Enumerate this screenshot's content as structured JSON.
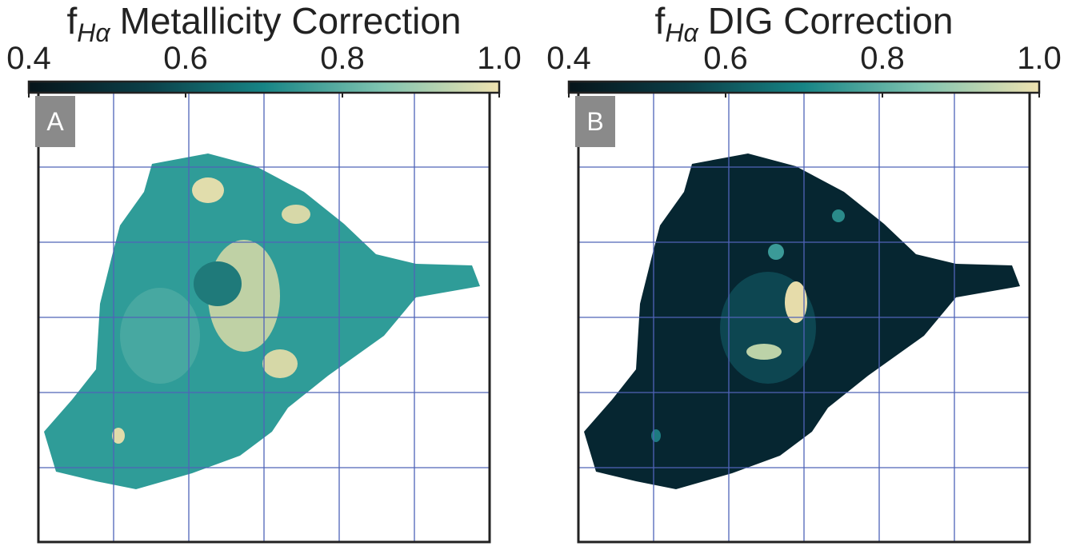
{
  "chart_data": [
    {
      "type": "map",
      "panel_label": "A",
      "title_prefix": "f",
      "title_subscript": "Hα",
      "title": "Metallicity Correction",
      "colorbar_lim": [
        0.4,
        1
      ],
      "colorbar_ticks": [
        0.4,
        0.6,
        0.8,
        {
          "value": 1,
          "label": "1.0"
        }
      ],
      "colormap": [
        "#06141a",
        "#0b3f48",
        "#178586",
        "#7fc3b0",
        "#efe2b0"
      ],
      "grid": true
    },
    {
      "type": "map",
      "panel_label": "B",
      "title_prefix": "f",
      "title_subscript": "Hα",
      "title": "DIG Correction",
      "colorbar_lim": [
        0.4,
        1
      ],
      "colorbar_ticks": [
        0.4,
        0.6,
        0.8,
        {
          "value": 1,
          "label": "1.0"
        }
      ],
      "colormap": [
        "#06141a",
        "#0b3f48",
        "#178586",
        "#7fc3b0",
        "#efe2b0"
      ],
      "grid": true
    }
  ]
}
